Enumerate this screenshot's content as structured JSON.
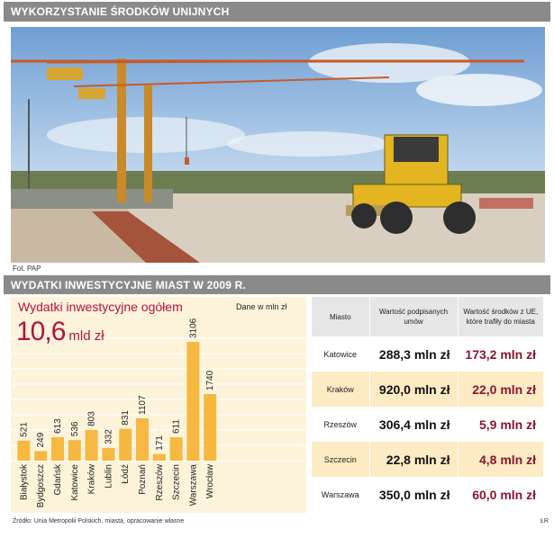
{
  "header": {
    "title": "WYKORZYSTANIE ŚRODKÓW UNIJNYCH"
  },
  "photo": {
    "credit": "Fot. PAP"
  },
  "section": {
    "title": "WYDATKI INWESTYCYJNE MIAST W 2009 R."
  },
  "chart_panel": {
    "title": "Wydatki inwestycyjne ogółem",
    "unit_note": "Dane w mln zł",
    "total_value": "10,6",
    "total_unit": "mld zł"
  },
  "chart_data": {
    "type": "bar",
    "title": "Wydatki inwestycyjne ogółem",
    "xlabel": "",
    "ylabel": "",
    "ylim": [
      0,
      3200
    ],
    "categories": [
      "Białystok",
      "Bydgoszcz",
      "Gdańsk",
      "Katowice",
      "Kraków",
      "Lublin",
      "Łódź",
      "Poznań",
      "Rzeszów",
      "Szczecin",
      "Warszawa",
      "Wrocław"
    ],
    "values": [
      521,
      249,
      613,
      536,
      803,
      332,
      831,
      1107,
      171,
      611,
      3106,
      1740
    ],
    "bar_color": "#f5b841",
    "grid": true
  },
  "table": {
    "headers": [
      "Miasto",
      "Wartość podpisanych umów",
      "Wartość środków z UE, które trafiły do miasta"
    ],
    "rows": [
      {
        "city": "Katowice",
        "contracts": "288,3 mln zł",
        "eu_funds": "173,2 mln zł"
      },
      {
        "city": "Kraków",
        "contracts": "920,0 mln zł",
        "eu_funds": "22,0 mln zł"
      },
      {
        "city": "Rzeszów",
        "contracts": "306,4 mln zł",
        "eu_funds": "5,9 mln zł"
      },
      {
        "city": "Szczecin",
        "contracts": "22,8 mln zł",
        "eu_funds": "4,8 mln zł"
      },
      {
        "city": "Warszawa",
        "contracts": "350,0 mln zł",
        "eu_funds": "60,0 mln zł"
      }
    ]
  },
  "footer": {
    "source": "Źródło: Unia Metropolii Polskich, miasta, opracowanie własne",
    "sign": "ŁR"
  },
  "colors": {
    "header_bg": "#8a8a8a",
    "accent_red": "#b3133a",
    "eu_value_red": "#8a1630",
    "bar": "#f5b841",
    "panel_bg": "#fdf3db",
    "row_highlight": "#fdebc4"
  }
}
